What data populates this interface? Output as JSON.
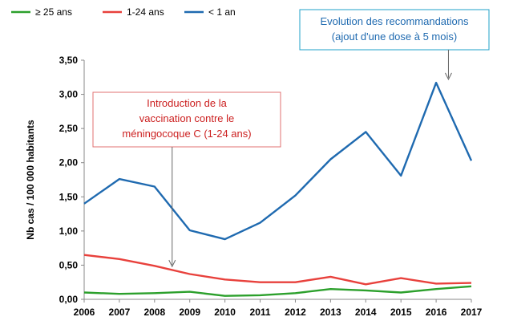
{
  "chart_data": {
    "type": "line",
    "x": [
      2006,
      2007,
      2008,
      2009,
      2010,
      2011,
      2012,
      2013,
      2014,
      2015,
      2016,
      2017
    ],
    "series": [
      {
        "name": "≥ 25 ans",
        "color": "#2ca02c",
        "values": [
          0.1,
          0.08,
          0.09,
          0.11,
          0.05,
          0.06,
          0.09,
          0.15,
          0.13,
          0.1,
          0.15,
          0.19
        ]
      },
      {
        "name": "1-24 ans",
        "color": "#e8413c",
        "values": [
          0.65,
          0.59,
          0.49,
          0.37,
          0.29,
          0.25,
          0.25,
          0.33,
          0.22,
          0.31,
          0.23,
          0.24
        ]
      },
      {
        "name": "< 1 an",
        "color": "#1f6ab0",
        "values": [
          1.4,
          1.76,
          1.65,
          1.01,
          0.88,
          1.12,
          1.52,
          2.05,
          2.45,
          1.81,
          3.17,
          2.03
        ]
      }
    ],
    "ylabel": "Nb cas / 100 000 habitants",
    "ylim": [
      0,
      3.5
    ],
    "yticks": [
      "0,00",
      "0,50",
      "1,00",
      "1,50",
      "2,00",
      "2,50",
      "3,00",
      "3,50"
    ],
    "grid": false,
    "legend": "top-left",
    "annotations": [
      {
        "text": [
          "Introduction de la",
          "vaccination contre le",
          "méningocoque C (1-24 ans)"
        ],
        "color": "#cc2020",
        "border": "#e07070",
        "points_to_x": 2008.5,
        "points_to_y": 0.48
      },
      {
        "text": [
          "Evolution des recommandations",
          "(ajout d'une dose à 5 mois)"
        ],
        "color": "#1f6ab0",
        "border": "#1fa0c8",
        "points_to_x": 2016.35,
        "points_to_y": 3.22
      }
    ]
  }
}
